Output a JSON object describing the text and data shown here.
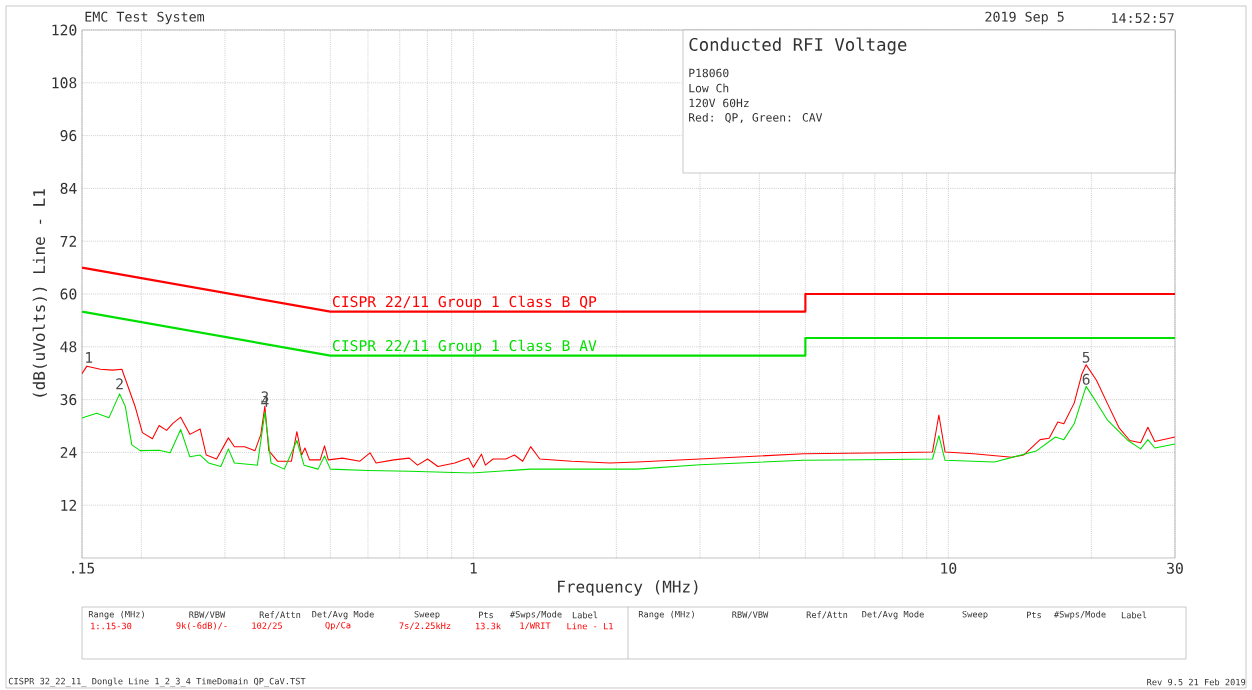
{
  "chart_data": {
    "type": "line",
    "title": "Conducted RFI Voltage",
    "subtitle": "EMC Test System",
    "xlabel": "Frequency (MHz)",
    "ylabel": "(dB(uVolts)) Line - L1",
    "log": "x",
    "grid": true,
    "line_style": "solid",
    "xlim": [
      0.15,
      30
    ],
    "ylim": [
      0,
      120
    ],
    "xticks": [
      {
        "value": 0.15,
        "label": ".15"
      },
      {
        "value": 0.2,
        "label": null
      },
      {
        "value": 0.3,
        "label": null
      },
      {
        "value": 0.4,
        "label": null
      },
      {
        "value": 0.5,
        "label": null
      },
      {
        "value": 0.6,
        "label": null
      },
      {
        "value": 0.7,
        "label": null
      },
      {
        "value": 0.8,
        "label": null
      },
      {
        "value": 0.9,
        "label": null
      },
      1,
      {
        "value": 2,
        "label": null
      },
      {
        "value": 3,
        "label": null
      },
      {
        "value": 4,
        "label": null
      },
      {
        "value": 5,
        "label": null
      },
      {
        "value": 6,
        "label": null
      },
      {
        "value": 7,
        "label": null
      },
      {
        "value": 8,
        "label": null
      },
      {
        "value": 9,
        "label": null
      },
      10,
      {
        "value": 20,
        "label": null
      },
      30
    ],
    "yticks": [
      12,
      24,
      36,
      48,
      60,
      72,
      84,
      96,
      108,
      120
    ],
    "series": [
      {
        "name": "CISPR 22/11 Group 1 Class B QP",
        "color": "#ff0000",
        "x": [
          0.15,
          0.5,
          5,
          5,
          30
        ],
        "values": [
          66,
          56,
          56,
          60,
          60
        ]
      },
      {
        "name": "CISPR 22/11 Group 1 Class B AV",
        "color": "#00e000",
        "x": [
          0.15,
          0.5,
          5,
          5,
          30
        ],
        "values": [
          56,
          46,
          46,
          50,
          50
        ]
      },
      {
        "color": "#ff0000",
        "x": [
          0.15,
          0.1536,
          0.164,
          0.174,
          0.182,
          0.194,
          0.201,
          0.211,
          0.218,
          0.226,
          0.233,
          0.242,
          0.253,
          0.266,
          0.274,
          0.288,
          0.305,
          0.314,
          0.33,
          0.347,
          0.357,
          0.364,
          0.371,
          0.387,
          0.414,
          0.425,
          0.435,
          0.442,
          0.452,
          0.476,
          0.486,
          0.495,
          0.53,
          0.577,
          0.606,
          0.624,
          0.68,
          0.733,
          0.763,
          0.801,
          0.842,
          0.914,
          0.977,
          1.0,
          1.04,
          1.06,
          1.1,
          1.17,
          1.22,
          1.27,
          1.32,
          1.38,
          1.61,
          1.94,
          2.21,
          3.0,
          4.96,
          7.57,
          9.26,
          9.55,
          9.84,
          11.3,
          13.6,
          14.4,
          15.6,
          16.3,
          17.0,
          17.5,
          18.4,
          19.1,
          19.5,
          20.5,
          21.6,
          22.9,
          24.1,
          25.4,
          26.3,
          27.2,
          30
        ],
        "values": [
          41.9,
          43.6,
          42.9,
          42.7,
          42.9,
          34.5,
          28.5,
          27.1,
          30.1,
          29.0,
          30.6,
          32.0,
          28.1,
          29.3,
          23.4,
          22.5,
          27.3,
          25.3,
          25.3,
          24.4,
          28.1,
          34.5,
          24.4,
          22.0,
          22.0,
          28.7,
          23.4,
          25.0,
          22.3,
          22.3,
          25.5,
          22.3,
          22.7,
          22.0,
          23.9,
          21.6,
          22.3,
          22.7,
          21.1,
          22.5,
          20.8,
          21.6,
          22.7,
          20.6,
          23.6,
          21.1,
          22.5,
          22.5,
          23.4,
          22.0,
          25.3,
          22.5,
          22.0,
          21.6,
          21.8,
          22.5,
          23.7,
          23.9,
          24.1,
          32.5,
          24.1,
          23.7,
          22.9,
          23.4,
          26.9,
          27.2,
          30.9,
          30.5,
          35.2,
          41.8,
          43.9,
          40.4,
          35.2,
          29.5,
          26.7,
          26.2,
          29.7,
          26.5,
          27.5
        ]
      },
      {
        "color": "#00e000",
        "x": [
          0.15,
          0.161,
          0.171,
          0.18,
          0.185,
          0.191,
          0.199,
          0.218,
          0.23,
          0.242,
          0.253,
          0.266,
          0.277,
          0.294,
          0.305,
          0.314,
          0.351,
          0.364,
          0.375,
          0.4,
          0.425,
          0.44,
          0.471,
          0.486,
          0.5,
          0.6,
          0.733,
          0.99,
          1.32,
          2.21,
          3.0,
          4.96,
          7.57,
          9.26,
          9.55,
          9.84,
          12.5,
          15.3,
          16.8,
          17.5,
          18.4,
          19.5,
          20.3,
          21.6,
          23.9,
          25.4,
          26.3,
          27.2,
          30
        ],
        "values": [
          31.8,
          32.9,
          31.9,
          37.3,
          34.5,
          25.7,
          24.4,
          24.5,
          23.9,
          29.2,
          23.0,
          23.4,
          21.6,
          20.8,
          24.8,
          21.6,
          21.1,
          33.1,
          21.6,
          20.2,
          26.7,
          21.1,
          20.2,
          23.2,
          20.2,
          19.9,
          19.7,
          19.3,
          20.2,
          20.2,
          21.2,
          22.2,
          22.4,
          22.5,
          27.8,
          22.2,
          21.8,
          24.3,
          27.5,
          26.9,
          30.5,
          39.0,
          36.1,
          31.4,
          26.7,
          24.8,
          26.9,
          25.0,
          25.9
        ]
      }
    ],
    "annotations": [
      "2019 Sep 5",
      "14:52:57",
      "P18060",
      "Low Ch",
      "120V 60Hz",
      "Red: QP, Green: CAV",
      {
        "text": "1",
        "x": 0.155,
        "y": 44
      },
      {
        "text": "2",
        "x": 0.18,
        "y": 38
      },
      {
        "text": "3",
        "x": 0.364,
        "y": 35
      },
      {
        "text": "4",
        "x": 0.364,
        "y": 34
      },
      {
        "text": "5",
        "x": 19.5,
        "y": 44
      },
      {
        "text": "6",
        "x": 19.5,
        "y": 39
      },
      "Range (MHz)",
      "RBW/VBW",
      "Ref/Attn",
      "Det/Avg Mode",
      "Sweep",
      "Pts",
      "#Swps/Mode",
      "Label",
      "1:.15-30",
      "9k(-6dB)/-",
      "102/25",
      "Qp/Ca",
      "7s/2.25kHz",
      "13.3k",
      "1/WRIT",
      "Line - L1",
      "Range (MHz)",
      "RBW/VBW",
      "Ref/Attn",
      "Det/Avg Mode",
      "Sweep",
      "Pts",
      "#Swps/Mode",
      "Label",
      "CISPR 32_22_11_ Dongle Line 1_2_3_4 TimeDomain QP_CaV.TST",
      "Rev 9.5 21 Feb 2019"
    ]
  }
}
